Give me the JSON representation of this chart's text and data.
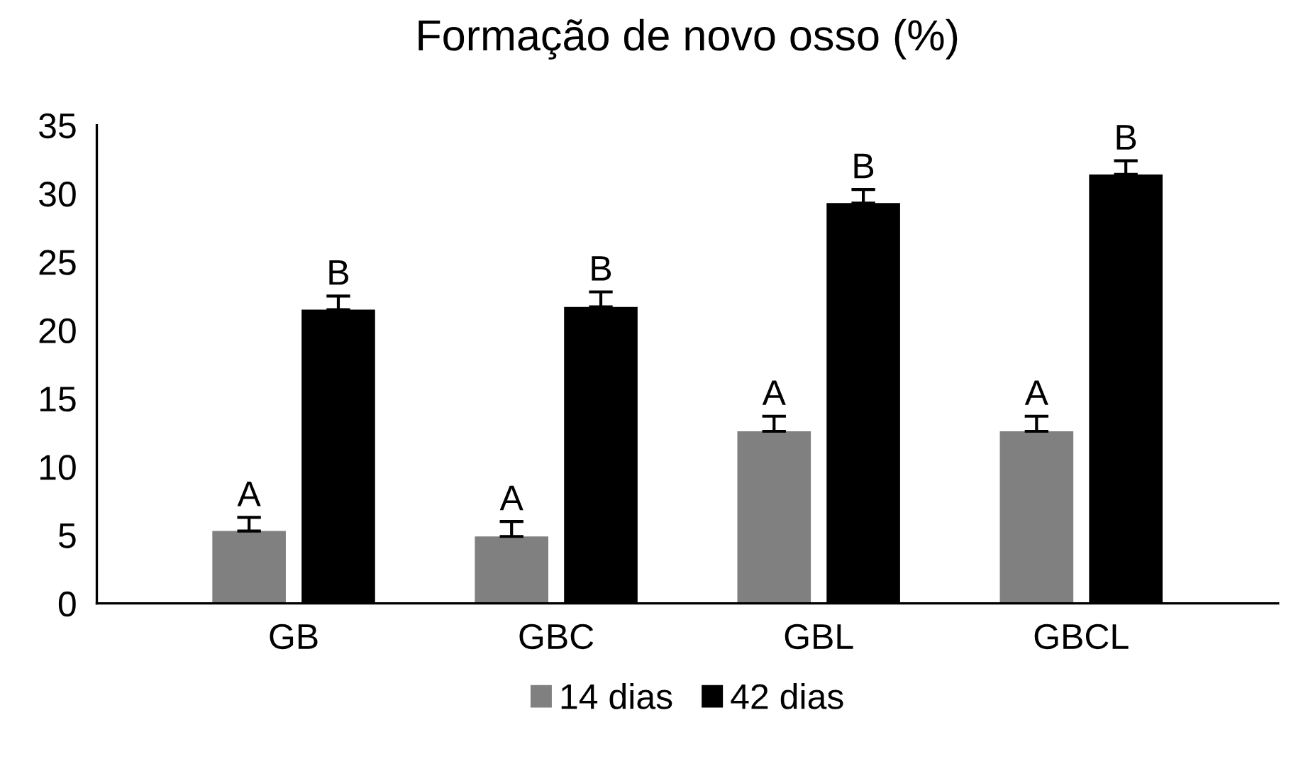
{
  "chart_data": {
    "type": "bar",
    "title": "Formação de novo osso (%)",
    "categories": [
      "GB",
      "GBC",
      "GBL",
      "GBCL"
    ],
    "series": [
      {
        "name": "14 dias",
        "color": "#808080",
        "values": [
          5.3,
          4.9,
          12.6,
          12.6
        ],
        "errors": [
          [
            5.3,
            6.3
          ],
          [
            4.9,
            6.0
          ],
          [
            12.6,
            13.7
          ],
          [
            12.6,
            13.7
          ]
        ],
        "value_labels": [
          "A",
          "A",
          "A",
          "A"
        ]
      },
      {
        "name": "42 dias",
        "color": "#000000",
        "values": [
          21.5,
          21.7,
          29.3,
          31.4
        ],
        "errors": [
          [
            21.5,
            22.5
          ],
          [
            21.7,
            22.8
          ],
          [
            29.3,
            30.3
          ],
          [
            31.4,
            32.4
          ]
        ],
        "value_labels": [
          "B",
          "B",
          "B",
          "B"
        ]
      }
    ],
    "ylim": [
      0,
      35
    ],
    "yticks": [
      0,
      5,
      10,
      15,
      20,
      25,
      30,
      35
    ],
    "grid": false,
    "legend": "bottom"
  }
}
